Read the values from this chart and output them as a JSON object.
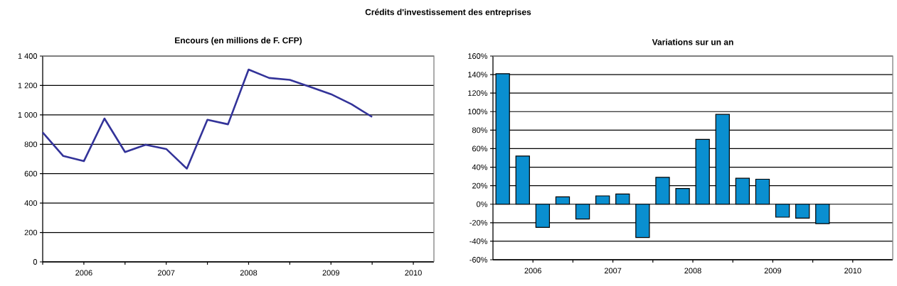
{
  "chart_data": [
    {
      "type": "line",
      "title": "Encours (en millions de F. CFP)",
      "annotations": [
        "Crédits d'investissement des entreprises"
      ],
      "x": [
        "2006-01",
        "2006-04",
        "2006-07",
        "2006-10",
        "2007-01",
        "2007-04",
        "2007-07",
        "2007-10",
        "2008-01",
        "2008-04",
        "2008-07",
        "2008-10",
        "2009-01",
        "2009-04",
        "2009-07",
        "2009-10",
        "2010-01"
      ],
      "series": [
        {
          "color": "#333399",
          "values": [
            880,
            720,
            685,
            975,
            747,
            797,
            768,
            634,
            967,
            936,
            1308,
            1251,
            1238,
            1190,
            1141,
            1072,
            986
          ]
        }
      ],
      "xlim": [
        "2006-01",
        "2010-10"
      ],
      "xticks": [
        {
          "value": "2006-01",
          "label": null
        },
        {
          "value": "2006-07",
          "label": "2006"
        },
        {
          "value": "2007-01",
          "label": null
        },
        {
          "value": "2007-07",
          "label": "2007"
        },
        {
          "value": "2008-01",
          "label": null
        },
        {
          "value": "2008-07",
          "label": "2008"
        },
        {
          "value": "2009-01",
          "label": null
        },
        {
          "value": "2009-07",
          "label": "2009"
        },
        {
          "value": "2010-01",
          "label": null
        },
        {
          "value": "2010-07",
          "label": "2010"
        }
      ],
      "ylim": [
        0,
        1400
      ],
      "yticks": [
        {
          "value": 0,
          "label": "0"
        },
        {
          "value": 200,
          "label": "200"
        },
        {
          "value": 400,
          "label": "400"
        },
        {
          "value": 600,
          "label": "600"
        },
        {
          "value": 800,
          "label": "800"
        },
        {
          "value": 1000,
          "label": "1 000"
        },
        {
          "value": 1200,
          "label": "1 200"
        },
        {
          "value": 1400,
          "label": "1 400"
        }
      ],
      "grid": "y",
      "line_style": "solid",
      "marker": "none"
    },
    {
      "type": "bar",
      "title": "Variations sur un an",
      "x": [
        "2006-02-15",
        "2006-05-15",
        "2006-08-15",
        "2006-11-15",
        "2007-02-15",
        "2007-05-15",
        "2007-08-15",
        "2007-11-15",
        "2008-02-15",
        "2008-05-15",
        "2008-08-15",
        "2008-11-15",
        "2009-02-15",
        "2009-05-15",
        "2009-08-15",
        "2009-11-15",
        "2010-02-15"
      ],
      "series": [
        {
          "color": "#0a8fd0",
          "values": [
            141,
            52,
            -25,
            8,
            -16,
            9,
            11,
            -36,
            29,
            17,
            70,
            97,
            28,
            27,
            -14,
            -15,
            -21
          ]
        }
      ],
      "xlim": [
        "2006-01",
        "2011-01"
      ],
      "xticks": [
        {
          "value": "2006-07",
          "label": "2006"
        },
        {
          "value": "2007-01",
          "label": null
        },
        {
          "value": "2007-07",
          "label": "2007"
        },
        {
          "value": "2008-01",
          "label": null
        },
        {
          "value": "2008-07",
          "label": "2008"
        },
        {
          "value": "2009-01",
          "label": null
        },
        {
          "value": "2009-07",
          "label": "2009"
        },
        {
          "value": "2010-01",
          "label": null
        },
        {
          "value": "2010-07",
          "label": "2010"
        }
      ],
      "ylim": [
        -60,
        160
      ],
      "yticks": [
        {
          "value": -60,
          "label": "-60%"
        },
        {
          "value": -40,
          "label": "-40%"
        },
        {
          "value": -20,
          "label": "-20%"
        },
        {
          "value": 0,
          "label": "0%"
        },
        {
          "value": 20,
          "label": "20%"
        },
        {
          "value": 40,
          "label": "40%"
        },
        {
          "value": 60,
          "label": "60%"
        },
        {
          "value": 80,
          "label": "80%"
        },
        {
          "value": 100,
          "label": "100%"
        },
        {
          "value": 120,
          "label": "120%"
        },
        {
          "value": 140,
          "label": "140%"
        },
        {
          "value": 160,
          "label": "160%"
        }
      ],
      "grid": "y"
    }
  ]
}
